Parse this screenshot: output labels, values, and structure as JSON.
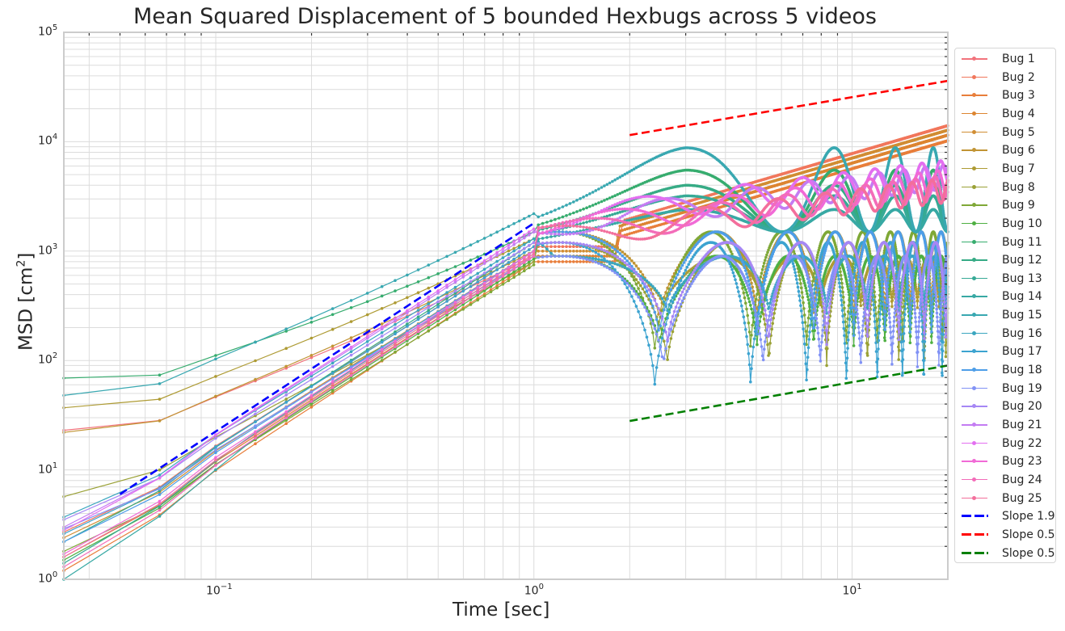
{
  "title": "Mean Squared Displacement of 5 bounded Hexbugs across 5 videos",
  "axes": {
    "xlabel": "Time [sec]",
    "ylabel_main": "MSD [cm",
    "ylabel_sup": "2",
    "ylabel_end": "]",
    "xticks": [
      {
        "base": "10",
        "exp": "−1",
        "value": 0.1
      },
      {
        "base": "10",
        "exp": "0",
        "value": 1
      },
      {
        "base": "10",
        "exp": "1",
        "value": 10
      }
    ],
    "yticks": [
      {
        "base": "10",
        "exp": "0",
        "value": 1
      },
      {
        "base": "10",
        "exp": "1",
        "value": 10
      },
      {
        "base": "10",
        "exp": "2",
        "value": 100
      },
      {
        "base": "10",
        "exp": "3",
        "value": 1000
      },
      {
        "base": "10",
        "exp": "4",
        "value": 10000
      },
      {
        "base": "10",
        "exp": "5",
        "value": 100000
      }
    ]
  },
  "legend": {
    "items": [
      {
        "label": "Bug 1",
        "color": "#f2737c",
        "style": "marker"
      },
      {
        "label": "Bug 2",
        "color": "#f1775c",
        "style": "marker"
      },
      {
        "label": "Bug 3",
        "color": "#e87e3b",
        "style": "marker"
      },
      {
        "label": "Bug 4",
        "color": "#dc8531",
        "style": "marker"
      },
      {
        "label": "Bug 5",
        "color": "#d18d33",
        "style": "marker"
      },
      {
        "label": "Bug 6",
        "color": "#c19434",
        "style": "marker"
      },
      {
        "label": "Bug 7",
        "color": "#ae9b34",
        "style": "marker"
      },
      {
        "label": "Bug 8",
        "color": "#9aa136",
        "style": "marker"
      },
      {
        "label": "Bug 9",
        "color": "#7fa837",
        "style": "marker"
      },
      {
        "label": "Bug 10",
        "color": "#4fb042",
        "style": "marker"
      },
      {
        "label": "Bug 11",
        "color": "#36ac6e",
        "style": "marker"
      },
      {
        "label": "Bug 12",
        "color": "#36ab85",
        "style": "marker"
      },
      {
        "label": "Bug 13",
        "color": "#37aa96",
        "style": "marker"
      },
      {
        "label": "Bug 14",
        "color": "#38a9a4",
        "style": "marker"
      },
      {
        "label": "Bug 15",
        "color": "#39a8b1",
        "style": "marker"
      },
      {
        "label": "Bug 16",
        "color": "#3aa6bf",
        "style": "marker"
      },
      {
        "label": "Bug 17",
        "color": "#3ca3d0",
        "style": "marker"
      },
      {
        "label": "Bug 18",
        "color": "#4e9ee8",
        "style": "marker"
      },
      {
        "label": "Bug 19",
        "color": "#8192f5",
        "style": "marker"
      },
      {
        "label": "Bug 20",
        "color": "#a687f5",
        "style": "marker"
      },
      {
        "label": "Bug 21",
        "color": "#c47cf3",
        "style": "marker"
      },
      {
        "label": "Bug 22",
        "color": "#e36ff0",
        "style": "marker"
      },
      {
        "label": "Bug 23",
        "color": "#f16ad6",
        "style": "marker"
      },
      {
        "label": "Bug 24",
        "color": "#f36cb9",
        "style": "marker"
      },
      {
        "label": "Bug 25",
        "color": "#f36f9c",
        "style": "marker"
      },
      {
        "label": "Slope 1.9",
        "color": "#0000ff",
        "style": "dashed"
      },
      {
        "label": "Slope 0.5",
        "color": "#ff0000",
        "style": "dashed"
      },
      {
        "label": "Slope 0.5",
        "color": "#008000",
        "style": "dashed"
      }
    ]
  },
  "chart_data": {
    "type": "line",
    "title": "Mean Squared Displacement of 5 bounded Hexbugs across 5 videos",
    "xlabel": "Time [sec]",
    "ylabel": "MSD [cm^2]",
    "xscale": "log",
    "yscale": "log",
    "xlim": [
      0.0333,
      20
    ],
    "ylim": [
      1,
      100000
    ],
    "grid": true,
    "legend_position": "outside right",
    "dt": 0.0333,
    "series": [
      {
        "name": "Bug 1",
        "color": "#f2737c",
        "msd_at_first": 23,
        "msd_at_1s": 900,
        "plateau": 16000,
        "behavior": "rising to ~1.6e4 at ~12s, then dropping"
      },
      {
        "name": "Bug 2",
        "color": "#f1775c",
        "msd_at_first": 2.7,
        "msd_at_1s": 1100,
        "plateau": 16000,
        "behavior": "rising to ~1.6e4 at ~12s"
      },
      {
        "name": "Bug 3",
        "color": "#e87e3b",
        "msd_at_first": 1.2,
        "msd_at_1s": 800,
        "plateau": 15000,
        "behavior": "rising to ~1.5e4 at ~12s"
      },
      {
        "name": "Bug 4",
        "color": "#dc8531",
        "msd_at_first": 1.6,
        "msd_at_1s": 900,
        "plateau": 17000,
        "behavior": "rising to ~1.7e4 at ~12s"
      },
      {
        "name": "Bug 5",
        "color": "#d18d33",
        "msd_at_first": 2.4,
        "msd_at_1s": 1000,
        "plateau": 19000,
        "behavior": "rising to ~1.9e4 at ~12s"
      },
      {
        "name": "Bug 6",
        "color": "#c19434",
        "msd_at_first": 22,
        "msd_at_1s": 1000,
        "min": 230,
        "behavior": "oscillating 230-1800 after 2s"
      },
      {
        "name": "Bug 7",
        "color": "#ae9b34",
        "msd_at_first": 37,
        "msd_at_1s": 1300,
        "min": 300,
        "behavior": "oscillating after 2s"
      },
      {
        "name": "Bug 8",
        "color": "#9aa136",
        "msd_at_first": 5.7,
        "msd_at_1s": 800,
        "min": 90,
        "behavior": "oscillating 90-800"
      },
      {
        "name": "Bug 9",
        "color": "#7fa837",
        "msd_at_first": 1.8,
        "msd_at_1s": 750,
        "min": 120,
        "behavior": "oscillating"
      },
      {
        "name": "Bug 10",
        "color": "#4fb042",
        "msd_at_first": 1.5,
        "msd_at_1s": 850,
        "min": 130,
        "behavior": "oscillating"
      },
      {
        "name": "Bug 11",
        "color": "#36ac6e",
        "msd_at_first": 69,
        "msd_at_1s": 1500,
        "peak": 5500,
        "behavior": "hump ~5.5e3 at 3s, oscillating 1500-6000"
      },
      {
        "name": "Bug 12",
        "color": "#36ab85",
        "msd_at_first": 2.2,
        "msd_at_1s": 1200,
        "peak": 4000,
        "behavior": "hump ~4e3 at 3s"
      },
      {
        "name": "Bug 13",
        "color": "#37aa96",
        "msd_at_first": 1.4,
        "msd_at_1s": 1000,
        "peak": 3200,
        "behavior": "hump ~3.2e3 at 3s"
      },
      {
        "name": "Bug 14",
        "color": "#38a9a4",
        "msd_at_first": 1.0,
        "msd_at_1s": 900,
        "peak": 2400,
        "behavior": "hump ~2.4e3 at 3s"
      },
      {
        "name": "Bug 15",
        "color": "#39a8b1",
        "msd_at_first": 48,
        "msd_at_1s": 2200,
        "peak": 8800,
        "behavior": "hump ~8.8e3 at 3s, up to ~1.4e4 at 20s"
      },
      {
        "name": "Bug 16",
        "color": "#3aa6bf",
        "msd_at_first": 3.7,
        "msd_at_1s": 1300,
        "min": 270,
        "behavior": "oscillating deep minima"
      },
      {
        "name": "Bug 17",
        "color": "#3ca3d0",
        "msd_at_first": 2.6,
        "msd_at_1s": 1100,
        "min": 55,
        "behavior": "oscillating, minima ~55 at 2.3s, 4.7s, 7s, 9.5s"
      },
      {
        "name": "Bug 18",
        "color": "#4e9ee8",
        "msd_at_first": 2.2,
        "msd_at_1s": 1000,
        "min": 160,
        "behavior": "oscillating"
      },
      {
        "name": "Bug 19",
        "color": "#8192f5",
        "msd_at_first": 2.9,
        "msd_at_1s": 900,
        "min": 85,
        "behavior": "oscillating"
      },
      {
        "name": "Bug 20",
        "color": "#a687f5",
        "msd_at_first": 3.5,
        "msd_at_1s": 1200,
        "min": 140,
        "behavior": "oscillating"
      },
      {
        "name": "Bug 21",
        "color": "#c47cf3",
        "msd_at_first": 3.0,
        "msd_at_1s": 1500,
        "plateau": 2000,
        "behavior": "wavy 1.3e3-5e3 rising"
      },
      {
        "name": "Bug 22",
        "color": "#e36ff0",
        "msd_at_first": 2.8,
        "msd_at_1s": 1600,
        "plateau": 2200,
        "behavior": "wavy rising"
      },
      {
        "name": "Bug 23",
        "color": "#f16ad6",
        "msd_at_first": 1.7,
        "msd_at_1s": 1000,
        "plateau": 1800,
        "behavior": "wavy rising"
      },
      {
        "name": "Bug 24",
        "color": "#f36cb9",
        "msd_at_first": 1.3,
        "msd_at_1s": 900,
        "plateau": 1600,
        "behavior": "wavy rising"
      },
      {
        "name": "Bug 25",
        "color": "#f36f9c",
        "msd_at_first": 1.6,
        "msd_at_1s": 950,
        "plateau": 1500,
        "behavior": "wavy rising to ~4.5e3"
      }
    ],
    "reference_lines": [
      {
        "name": "Slope 1.9",
        "color": "#0000ff",
        "x": [
          0.05,
          1.0
        ],
        "y": [
          6,
          1800
        ]
      },
      {
        "name": "Slope 0.5",
        "color": "#ff0000",
        "x": [
          2.0,
          20.0
        ],
        "y": [
          11500,
          36000
        ]
      },
      {
        "name": "Slope 0.5",
        "color": "#008000",
        "x": [
          2.0,
          20.0
        ],
        "y": [
          28,
          90
        ]
      }
    ]
  }
}
